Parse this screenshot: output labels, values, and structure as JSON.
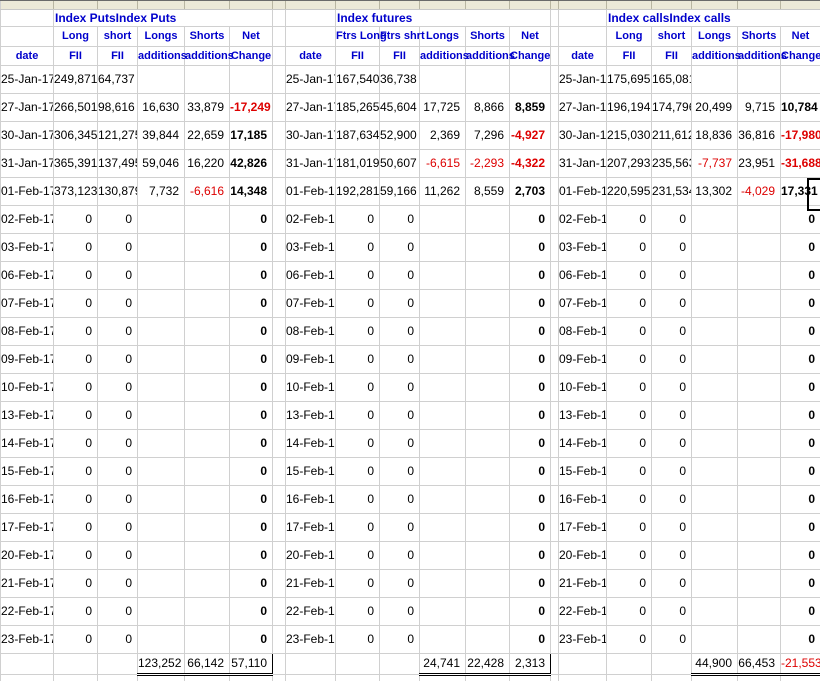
{
  "colors": {
    "header_text": "#0000cc",
    "negative_number": "#dd0000",
    "gridline": "#d0d0d0",
    "top_strip": "#ece9d8"
  },
  "dates": [
    "25-Jan-17",
    "27-Jan-17",
    "30-Jan-17",
    "31-Jan-17",
    "01-Feb-17",
    "02-Feb-17",
    "03-Feb-17",
    "06-Feb-17",
    "07-Feb-17",
    "08-Feb-17",
    "09-Feb-17",
    "10-Feb-17",
    "13-Feb-17",
    "14-Feb-17",
    "15-Feb-17",
    "16-Feb-17",
    "17-Feb-17",
    "20-Feb-17",
    "21-Feb-17",
    "22-Feb-17",
    "23-Feb-17"
  ],
  "sections": [
    {
      "title": "Index PutsIndex Puts",
      "header_row1": [
        "",
        "Long",
        "short",
        "Longs",
        "Shorts",
        "Net"
      ],
      "header_row2": [
        "date",
        "FII",
        "FII",
        "additions",
        "additions",
        "Change"
      ],
      "rows": [
        [
          "249,871",
          "64,737",
          "",
          "",
          ""
        ],
        [
          "266,501",
          "98,616",
          "16,630",
          "33,879",
          "-17,249"
        ],
        [
          "306,345",
          "121,275",
          "39,844",
          "22,659",
          "17,185"
        ],
        [
          "365,391",
          "137,495",
          "59,046",
          "16,220",
          "42,826"
        ],
        [
          "373,123",
          "130,879",
          "7,732",
          "-6,616",
          "14,348"
        ],
        [
          "0",
          "0",
          "",
          "",
          "0"
        ],
        [
          "0",
          "0",
          "",
          "",
          "0"
        ],
        [
          "0",
          "0",
          "",
          "",
          "0"
        ],
        [
          "0",
          "0",
          "",
          "",
          "0"
        ],
        [
          "0",
          "0",
          "",
          "",
          "0"
        ],
        [
          "0",
          "0",
          "",
          "",
          "0"
        ],
        [
          "0",
          "0",
          "",
          "",
          "0"
        ],
        [
          "0",
          "0",
          "",
          "",
          "0"
        ],
        [
          "0",
          "0",
          "",
          "",
          "0"
        ],
        [
          "0",
          "0",
          "",
          "",
          "0"
        ],
        [
          "0",
          "0",
          "",
          "",
          "0"
        ],
        [
          "0",
          "0",
          "",
          "",
          "0"
        ],
        [
          "0",
          "0",
          "",
          "",
          "0"
        ],
        [
          "0",
          "0",
          "",
          "",
          "0"
        ],
        [
          "0",
          "0",
          "",
          "",
          "0"
        ],
        [
          "0",
          "0",
          "",
          "",
          "0"
        ]
      ],
      "totals": [
        "123,252",
        "66,142",
        "57,110"
      ]
    },
    {
      "title": "Index futures",
      "header_row1": [
        "",
        "Ftrs Long",
        "Ftrs shrt",
        "Longs",
        "Shorts",
        "Net"
      ],
      "header_row2": [
        "date",
        "FII",
        "FII",
        "additions",
        "additions",
        "Change"
      ],
      "rows": [
        [
          "167,540",
          "36,738",
          "",
          "",
          ""
        ],
        [
          "185,265",
          "45,604",
          "17,725",
          "8,866",
          "8,859"
        ],
        [
          "187,634",
          "52,900",
          "2,369",
          "7,296",
          "-4,927"
        ],
        [
          "181,019",
          "50,607",
          "-6,615",
          "-2,293",
          "-4,322"
        ],
        [
          "192,281",
          "59,166",
          "11,262",
          "8,559",
          "2,703"
        ],
        [
          "0",
          "0",
          "",
          "",
          "0"
        ],
        [
          "0",
          "0",
          "",
          "",
          "0"
        ],
        [
          "0",
          "0",
          "",
          "",
          "0"
        ],
        [
          "0",
          "0",
          "",
          "",
          "0"
        ],
        [
          "0",
          "0",
          "",
          "",
          "0"
        ],
        [
          "0",
          "0",
          "",
          "",
          "0"
        ],
        [
          "0",
          "0",
          "",
          "",
          "0"
        ],
        [
          "0",
          "0",
          "",
          "",
          "0"
        ],
        [
          "0",
          "0",
          "",
          "",
          "0"
        ],
        [
          "0",
          "0",
          "",
          "",
          "0"
        ],
        [
          "0",
          "0",
          "",
          "",
          "0"
        ],
        [
          "0",
          "0",
          "",
          "",
          "0"
        ],
        [
          "0",
          "0",
          "",
          "",
          "0"
        ],
        [
          "0",
          "0",
          "",
          "",
          "0"
        ],
        [
          "0",
          "0",
          "",
          "",
          "0"
        ],
        [
          "0",
          "0",
          "",
          "",
          "0"
        ]
      ],
      "totals": [
        "24,741",
        "22,428",
        "2,313"
      ]
    },
    {
      "title": "Index callsIndex calls",
      "header_row1": [
        "",
        "Long",
        "short",
        "Longs",
        "Shorts",
        "Net"
      ],
      "header_row2": [
        "date",
        "FII",
        "FII",
        "additions",
        "additions",
        "Change"
      ],
      "rows": [
        [
          "175,695",
          "165,081",
          "",
          "",
          ""
        ],
        [
          "196,194",
          "174,796",
          "20,499",
          "9,715",
          "10,784"
        ],
        [
          "215,030",
          "211,612",
          "18,836",
          "36,816",
          "-17,980"
        ],
        [
          "207,293",
          "235,563",
          "-7,737",
          "23,951",
          "-31,688"
        ],
        [
          "220,595",
          "231,534",
          "13,302",
          "-4,029",
          "17,331"
        ],
        [
          "0",
          "0",
          "",
          "",
          "0"
        ],
        [
          "0",
          "0",
          "",
          "",
          "0"
        ],
        [
          "0",
          "0",
          "",
          "",
          "0"
        ],
        [
          "0",
          "0",
          "",
          "",
          "0"
        ],
        [
          "0",
          "0",
          "",
          "",
          "0"
        ],
        [
          "0",
          "0",
          "",
          "",
          "0"
        ],
        [
          "0",
          "0",
          "",
          "",
          "0"
        ],
        [
          "0",
          "0",
          "",
          "",
          "0"
        ],
        [
          "0",
          "0",
          "",
          "",
          "0"
        ],
        [
          "0",
          "0",
          "",
          "",
          "0"
        ],
        [
          "0",
          "0",
          "",
          "",
          "0"
        ],
        [
          "0",
          "0",
          "",
          "",
          "0"
        ],
        [
          "0",
          "0",
          "",
          "",
          "0"
        ],
        [
          "0",
          "0",
          "",
          "",
          "0"
        ],
        [
          "0",
          "0",
          "",
          "",
          "0"
        ],
        [
          "0",
          "0",
          "",
          "",
          "0"
        ]
      ],
      "totals": [
        "44,900",
        "66,453",
        "-21,553"
      ]
    }
  ]
}
